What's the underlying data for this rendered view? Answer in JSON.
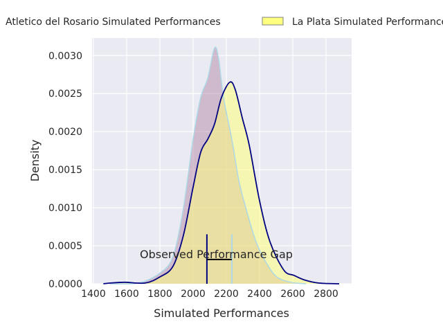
{
  "chart_data": {
    "type": "area",
    "title": "",
    "xlabel": "Simulated Performances",
    "ylabel": "Density",
    "xlim": [
      1392,
      2954
    ],
    "ylim": [
      0,
      0.00323
    ],
    "xticks": [
      1400,
      1600,
      1800,
      2000,
      2200,
      2400,
      2600,
      2800
    ],
    "yticks": [
      0,
      0.0005,
      0.001,
      0.0015,
      0.002,
      0.0025,
      0.003
    ],
    "ytick_labels": [
      "0.0000",
      "0.0005",
      "0.0010",
      "0.0015",
      "0.0020",
      "0.0025",
      "0.0030"
    ],
    "grid": true,
    "legend_placement": "top, outside",
    "series": [
      {
        "name": "Atletico del Rosario Simulated Performances",
        "fill": "#b07fa0",
        "edge": "#add8e6",
        "x": [
          1500,
          1670,
          1800,
          1879,
          1942,
          2000,
          2046,
          2088,
          2129,
          2154,
          2183,
          2233,
          2275,
          2317,
          2379,
          2442,
          2504,
          2588,
          2680
        ],
        "y": [
          0,
          1e-05,
          0.00014,
          0.00036,
          0.001,
          0.0019,
          0.00245,
          0.0027,
          0.0031,
          0.00295,
          0.00245,
          0.0019,
          0.00136,
          0.001,
          0.00055,
          0.00027,
          9e-05,
          2e-05,
          0
        ]
      },
      {
        "name": "La Plata Simulated Performances",
        "fill": "#ffff80",
        "edge": "#000080",
        "x": [
          1460,
          1504,
          1588,
          1712,
          1800,
          1879,
          1942,
          2000,
          2046,
          2088,
          2129,
          2171,
          2221,
          2254,
          2296,
          2338,
          2400,
          2463,
          2546,
          2608,
          2671,
          2754,
          2879
        ],
        "y": [
          0,
          1e-05,
          2e-05,
          1e-05,
          9e-05,
          0.00023,
          0.00064,
          0.00127,
          0.00173,
          0.0019,
          0.0021,
          0.00245,
          0.00265,
          0.00255,
          0.00218,
          0.00182,
          0.00109,
          0.00055,
          0.00018,
          0.00011,
          5e-05,
          1e-05,
          0
        ]
      }
    ],
    "vlines": [
      {
        "x": 2083,
        "ymax": 0.00065,
        "color": "#000080"
      },
      {
        "x": 2233,
        "ymax": 0.00065,
        "color": "#add8e6"
      }
    ],
    "gap_line": {
      "x1": 2083,
      "x2": 2233,
      "y": 0.00032
    },
    "annotation": "Observed Performance Gap"
  }
}
